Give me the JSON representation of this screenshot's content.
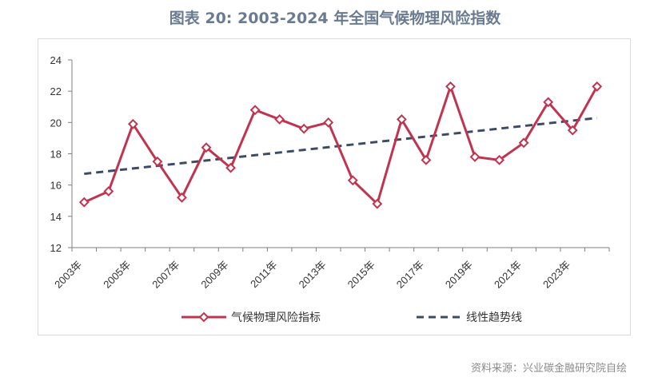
{
  "source": "资料来源：兴业碳金融研究院自绘",
  "chart_data": {
    "type": "line",
    "title": "图表 20: 2003-2024 年全国气候物理风险指数",
    "categories": [
      "2003年",
      "2004年",
      "2005年",
      "2006年",
      "2007年",
      "2008年",
      "2009年",
      "2010年",
      "2011年",
      "2012年",
      "2013年",
      "2014年",
      "2015年",
      "2016年",
      "2017年",
      "2018年",
      "2019年",
      "2020年",
      "2021年",
      "2022年",
      "2023年",
      "2024年"
    ],
    "tick_labels": [
      "2003年",
      "2005年",
      "2007年",
      "2009年",
      "2011年",
      "2013年",
      "2015年",
      "2017年",
      "2019年",
      "2021年",
      "2023年"
    ],
    "series": [
      {
        "name": "气候物理风险指标",
        "style": "solid-diamond",
        "color": "#c0344f",
        "values": [
          14.9,
          15.6,
          19.9,
          17.5,
          15.2,
          18.4,
          17.1,
          20.8,
          20.2,
          19.6,
          20.0,
          16.3,
          14.8,
          20.2,
          17.6,
          22.3,
          17.8,
          17.6,
          18.7,
          21.3,
          19.5,
          22.3
        ]
      },
      {
        "name": "线性趋势线",
        "style": "dashed",
        "color": "#3c4a66",
        "values": [
          16.72,
          16.89,
          17.06,
          17.23,
          17.4,
          17.57,
          17.74,
          17.91,
          18.08,
          18.25,
          18.42,
          18.59,
          18.76,
          18.93,
          19.1,
          19.27,
          19.44,
          19.61,
          19.78,
          19.95,
          20.12,
          20.29
        ]
      }
    ],
    "ylim": [
      12,
      24
    ],
    "yticks": [
      12,
      14,
      16,
      18,
      20,
      22,
      24
    ],
    "grid": false,
    "legend_position": "bottom"
  }
}
